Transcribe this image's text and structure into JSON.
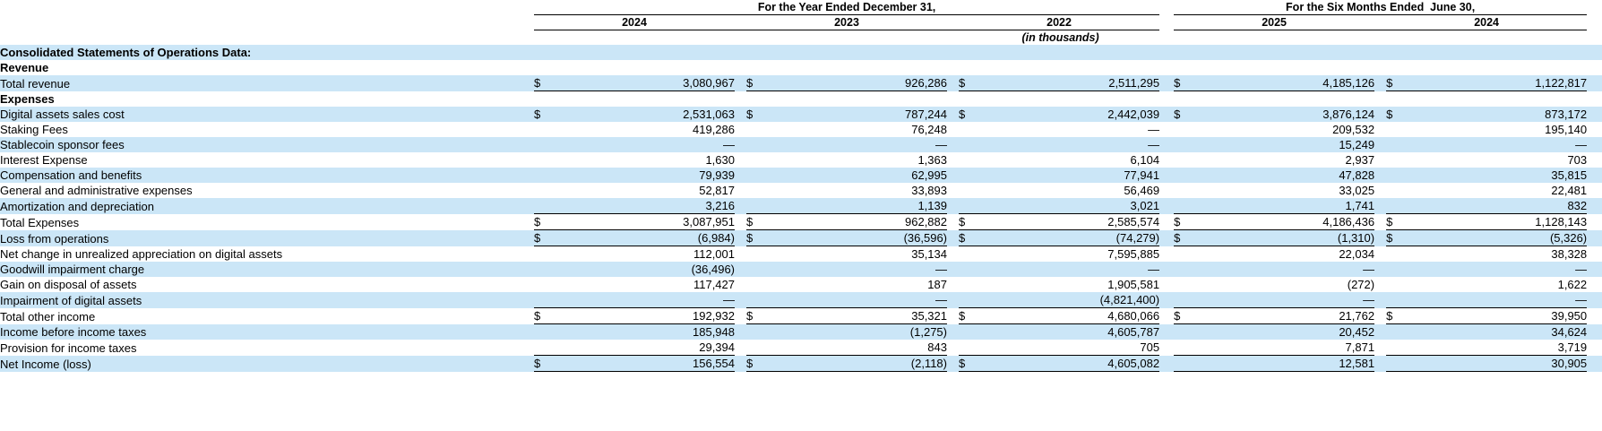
{
  "colors": {
    "row_stripe": "#CBE6F7",
    "rule_line": "#000000",
    "text": "#000000"
  },
  "table": {
    "currency_symbol": "$",
    "header": {
      "year_ended_group": {
        "label": "For the Year Ended December 31,",
        "years": [
          "2024",
          "2023",
          "2022"
        ]
      },
      "six_months_group": {
        "label": "For the Six Months Ended  June 30,",
        "years": [
          "2025",
          "2024"
        ]
      },
      "units_note": "(in thousands)"
    },
    "rows": [
      {
        "label": "Consolidated Statements of Operations Data:",
        "bold": true,
        "indent": 0,
        "values": null
      },
      {
        "label": "Revenue",
        "bold": true,
        "indent": 0,
        "values": null
      },
      {
        "label": "Total revenue",
        "indent": 1,
        "dollars": [
          true,
          true,
          true,
          true,
          true
        ],
        "underline": true,
        "values": [
          "3,080,967",
          "926,286",
          "2,511,295",
          "4,185,126",
          "1,122,817"
        ]
      },
      {
        "label": "Expenses",
        "bold": true,
        "indent": 0,
        "values": null
      },
      {
        "label": "Digital assets sales cost",
        "indent": 1,
        "dollars": [
          true,
          true,
          true,
          true,
          true
        ],
        "values": [
          "2,531,063",
          "787,244",
          "2,442,039",
          "3,876,124",
          "873,172"
        ]
      },
      {
        "label": "Staking Fees",
        "indent": 1,
        "values": [
          "419,286",
          "76,248",
          "—",
          "209,532",
          "195,140"
        ]
      },
      {
        "label": "Stablecoin sponsor fees",
        "indent": 1,
        "values": [
          "—",
          "—",
          "—",
          "15,249",
          "—"
        ]
      },
      {
        "label": "Interest Expense",
        "indent": 1,
        "values": [
          "1,630",
          "1,363",
          "6,104",
          "2,937",
          "703"
        ]
      },
      {
        "label": "Compensation and benefits",
        "indent": 1,
        "values": [
          "79,939",
          "62,995",
          "77,941",
          "47,828",
          "35,815"
        ]
      },
      {
        "label": "General and administrative expenses",
        "indent": 1,
        "values": [
          "52,817",
          "33,893",
          "56,469",
          "33,025",
          "22,481"
        ]
      },
      {
        "label": "Amortization and depreciation",
        "indent": 1,
        "underline": true,
        "values": [
          "3,216",
          "1,139",
          "3,021",
          "1,741",
          "832"
        ]
      },
      {
        "label": "Total Expenses",
        "indent": 2,
        "dollars": [
          true,
          true,
          true,
          true,
          true
        ],
        "underline": true,
        "values": [
          "3,087,951",
          "962,882",
          "2,585,574",
          "4,186,436",
          "1,128,143"
        ]
      },
      {
        "label": "Loss from operations",
        "indent": 0,
        "dollars": [
          true,
          true,
          true,
          true,
          true
        ],
        "underline": true,
        "values": [
          "(6,984)",
          "(36,596)",
          "(74,279)",
          "(1,310)",
          "(5,326)"
        ]
      },
      {
        "label": "Net change in unrealized appreciation on digital assets",
        "indent": 1,
        "values": [
          "112,001",
          "35,134",
          "7,595,885",
          "22,034",
          "38,328"
        ]
      },
      {
        "label": "Goodwill impairment charge",
        "indent": 1,
        "values": [
          "(36,496)",
          "—",
          "—",
          "—",
          "—"
        ]
      },
      {
        "label": "Gain on disposal of assets",
        "indent": 1,
        "values": [
          "117,427",
          "187",
          "1,905,581",
          "(272)",
          "1,622"
        ]
      },
      {
        "label": "Impairment of digital assets",
        "indent": 1,
        "underline": true,
        "values": [
          "—",
          "—",
          "(4,821,400)",
          "—",
          "—"
        ]
      },
      {
        "label": "Total other income",
        "indent": 2,
        "dollars": [
          true,
          true,
          true,
          true,
          true
        ],
        "underline": true,
        "values": [
          "192,932",
          "35,321",
          "4,680,066",
          "21,762",
          "39,950"
        ]
      },
      {
        "label": "Income before income taxes",
        "indent": 1,
        "values": [
          "185,948",
          "(1,275)",
          "4,605,787",
          "20,452",
          "34,624"
        ]
      },
      {
        "label": "Provision for income taxes",
        "indent": 1,
        "underline": true,
        "values": [
          "29,394",
          "843",
          "705",
          "7,871",
          "3,719"
        ]
      },
      {
        "label": "Net Income (loss)",
        "indent": 1,
        "dollars": [
          true,
          true,
          true,
          false,
          false
        ],
        "underline": true,
        "values": [
          "156,554",
          "(2,118)",
          "4,605,082",
          "12,581",
          "30,905"
        ]
      }
    ]
  }
}
